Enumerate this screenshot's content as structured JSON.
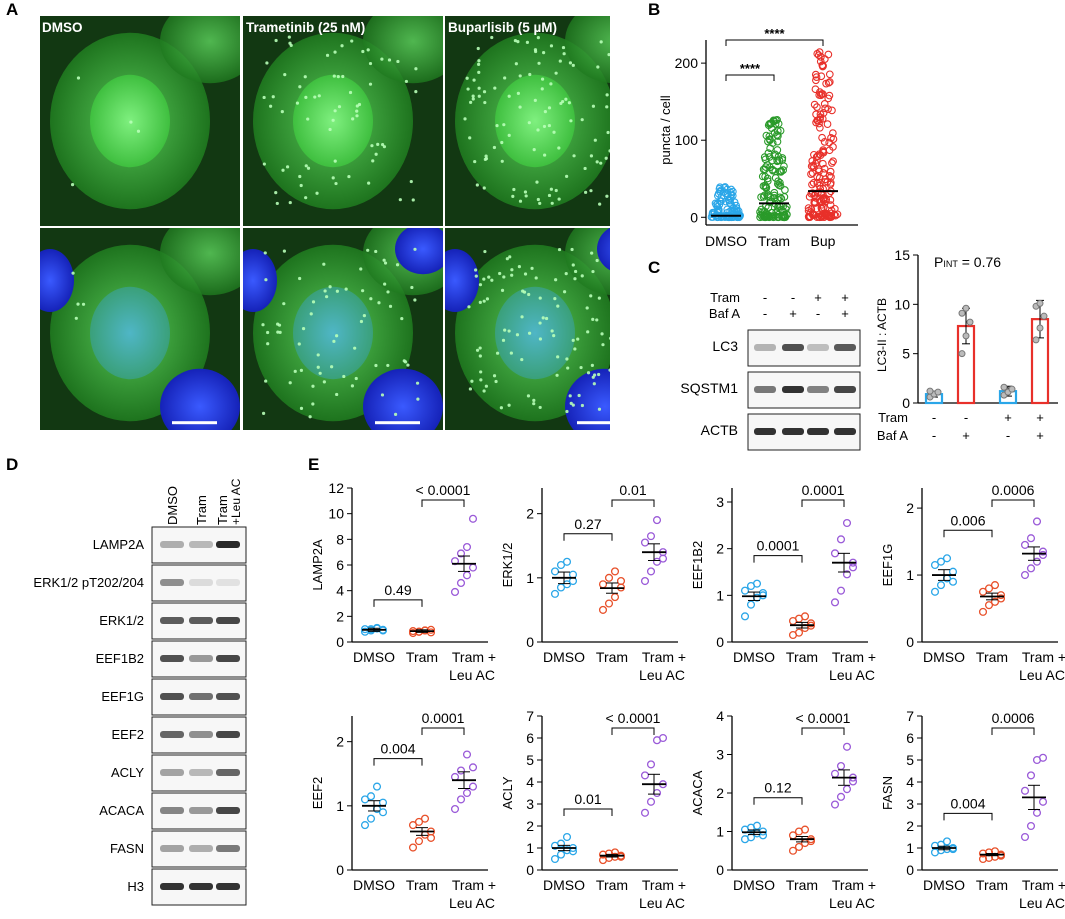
{
  "panels": {
    "A": "A",
    "B": "B",
    "C": "C",
    "D": "D",
    "E": "E"
  },
  "panel_a": {
    "conditions": [
      "DMSO",
      "Trametinib (25 nM)",
      "Buparlisib (5 µM)"
    ]
  },
  "colors": {
    "dmso": "#2aa6e8",
    "tram": "#e8502a",
    "tram_green": "#2a9a2a",
    "bup": "#e8302a",
    "leu": "#9a5ad8",
    "micro_green": "#3fbf3f",
    "nucleus_blue": "#2a3ae0"
  },
  "chart_data": [
    {
      "id": "B",
      "type": "scatter",
      "ylabel": "puncta / cell",
      "categories": [
        "DMSO",
        "Tram",
        "Bup"
      ],
      "yticks": [
        0,
        100,
        200
      ],
      "ylim": [
        -10,
        230
      ],
      "means": [
        2,
        18,
        34
      ],
      "series_colors": [
        "#2aa6e8",
        "#2a9a2a",
        "#e8302a"
      ],
      "significance": [
        {
          "from": 0,
          "to": 1,
          "label": "****"
        },
        {
          "from": 0,
          "to": 2,
          "label": "****"
        }
      ]
    },
    {
      "id": "C",
      "type": "bar",
      "ylabel": "LC3-II : ACTB",
      "annotation": "P",
      "annotation_sub": "INT",
      "annotation_value": " = 0.76",
      "yticks": [
        0,
        5,
        10,
        15
      ],
      "ylim": [
        0,
        15
      ],
      "values": [
        0.9,
        7.8,
        1.2,
        8.5
      ],
      "errors": [
        0.3,
        1.8,
        0.5,
        1.9
      ],
      "points": [
        [
          0.6,
          0.9,
          1.1,
          1.2
        ],
        [
          5.0,
          6.8,
          8.2,
          9.1,
          9.6
        ],
        [
          0.8,
          1.1,
          1.4,
          1.6
        ],
        [
          6.4,
          7.6,
          8.8,
          9.8,
          10.1
        ]
      ],
      "bar_colors": [
        "#2aa6e8",
        "#e8302a",
        "#2aa6e8",
        "#e8302a"
      ],
      "tram_row": {
        "label": "Tram",
        "signs": [
          "-",
          "-",
          "+",
          "+"
        ]
      },
      "baf_row": {
        "label": "Baf A",
        "signs": [
          "-",
          "+",
          "-",
          "+"
        ]
      }
    },
    {
      "id": "E",
      "type": "scatter",
      "categories": [
        "DMSO",
        "Tram",
        "Tram +",
        "Leu AC"
      ],
      "plots": [
        {
          "ylabel": "LAMP2A",
          "ylim": [
            0,
            12
          ],
          "yticks": [
            0,
            2,
            4,
            6,
            8,
            10,
            12
          ],
          "means": [
            0.95,
            0.85,
            6.1
          ],
          "sem": [
            0.12,
            0.1,
            0.6
          ],
          "p1": "0.49",
          "p2": "< 0.0001",
          "pts": [
            [
              0.8,
              1.0,
              1.1,
              0.9,
              1.0,
              0.9,
              1.05,
              0.95
            ],
            [
              0.7,
              0.8,
              0.9,
              0.95,
              0.85,
              0.8,
              0.9,
              0.75
            ],
            [
              3.9,
              4.6,
              5.2,
              5.8,
              6.3,
              6.9,
              7.4,
              9.6
            ]
          ]
        },
        {
          "ylabel": "ERK1/2",
          "ylim": [
            0,
            2.4
          ],
          "yticks": [
            0,
            1,
            2
          ],
          "means": [
            1.0,
            0.84,
            1.4
          ],
          "sem": [
            0.09,
            0.08,
            0.13
          ],
          "p1": "0.27",
          "p2": "0.01",
          "pts": [
            [
              0.75,
              0.85,
              0.9,
              1.05,
              1.1,
              1.2,
              1.25,
              0.95
            ],
            [
              0.5,
              0.6,
              0.7,
              0.85,
              0.9,
              1.0,
              1.1,
              0.95
            ],
            [
              0.95,
              1.1,
              1.25,
              1.4,
              1.55,
              1.65,
              1.9,
              1.3
            ]
          ]
        },
        {
          "ylabel": "EEF1B2",
          "ylim": [
            0,
            3.3
          ],
          "yticks": [
            0,
            1,
            2,
            3
          ],
          "means": [
            0.98,
            0.36,
            1.7
          ],
          "sem": [
            0.09,
            0.06,
            0.2
          ],
          "p1": "0.0001",
          "p2": "0.0001",
          "pts": [
            [
              0.55,
              0.8,
              0.95,
              1.0,
              1.1,
              1.2,
              1.25,
              1.05
            ],
            [
              0.15,
              0.2,
              0.3,
              0.4,
              0.45,
              0.5,
              0.55,
              0.35
            ],
            [
              0.85,
              1.1,
              1.45,
              1.7,
              1.9,
              2.2,
              2.55,
              1.6
            ]
          ]
        },
        {
          "ylabel": "EEF1G",
          "ylim": [
            0,
            2.3
          ],
          "yticks": [
            0,
            1,
            2
          ],
          "means": [
            1.0,
            0.68,
            1.32
          ],
          "sem": [
            0.08,
            0.05,
            0.1
          ],
          "p1": "0.006",
          "p2": "0.0006",
          "pts": [
            [
              0.75,
              0.85,
              0.95,
              1.05,
              1.15,
              1.2,
              1.25,
              0.9
            ],
            [
              0.45,
              0.55,
              0.6,
              0.7,
              0.75,
              0.8,
              0.85,
              0.65
            ],
            [
              1.0,
              1.1,
              1.2,
              1.3,
              1.45,
              1.55,
              1.8,
              1.35
            ]
          ]
        },
        {
          "ylabel": "EEF2",
          "ylim": [
            0,
            2.4
          ],
          "yticks": [
            0,
            1,
            2
          ],
          "means": [
            1.0,
            0.6,
            1.4
          ],
          "sem": [
            0.08,
            0.06,
            0.13
          ],
          "p1": "0.004",
          "p2": "0.0001",
          "pts": [
            [
              0.7,
              0.8,
              0.95,
              1.05,
              1.1,
              1.15,
              1.3,
              0.9
            ],
            [
              0.35,
              0.45,
              0.55,
              0.6,
              0.7,
              0.75,
              0.8,
              0.5
            ],
            [
              0.95,
              1.1,
              1.2,
              1.3,
              1.45,
              1.55,
              1.8,
              1.6
            ]
          ]
        },
        {
          "ylabel": "ACLY",
          "ylim": [
            0,
            7
          ],
          "yticks": [
            0,
            1,
            2,
            3,
            4,
            5,
            6,
            7
          ],
          "means": [
            1.0,
            0.65,
            3.9
          ],
          "sem": [
            0.12,
            0.06,
            0.45
          ],
          "p1": "0.01",
          "p2": "< 0.0001",
          "pts": [
            [
              0.5,
              0.7,
              0.9,
              1.0,
              1.1,
              1.2,
              1.5,
              0.85
            ],
            [
              0.45,
              0.55,
              0.6,
              0.65,
              0.7,
              0.75,
              0.8,
              0.6
            ],
            [
              2.6,
              3.1,
              3.5,
              3.9,
              4.3,
              4.8,
              5.9,
              6.0
            ]
          ]
        },
        {
          "ylabel": "ACACA",
          "ylim": [
            0,
            4
          ],
          "yticks": [
            0,
            1,
            2,
            3,
            4
          ],
          "means": [
            0.98,
            0.8,
            2.4
          ],
          "sem": [
            0.06,
            0.07,
            0.2
          ],
          "p1": "0.12",
          "p2": "< 0.0001",
          "pts": [
            [
              0.8,
              0.85,
              0.95,
              1.0,
              1.05,
              1.1,
              1.15,
              0.9
            ],
            [
              0.5,
              0.6,
              0.7,
              0.8,
              0.9,
              1.0,
              1.05,
              0.75
            ],
            [
              1.7,
              1.9,
              2.1,
              2.3,
              2.5,
              2.7,
              3.2,
              2.4
            ]
          ]
        },
        {
          "ylabel": "FASN",
          "ylim": [
            0,
            7
          ],
          "yticks": [
            0,
            1,
            2,
            3,
            4,
            5,
            6,
            7
          ],
          "means": [
            1.0,
            0.7,
            3.3
          ],
          "sem": [
            0.08,
            0.05,
            0.55
          ],
          "p1": "0.004",
          "p2": "0.0006",
          "pts": [
            [
              0.8,
              0.9,
              0.95,
              1.0,
              1.1,
              1.15,
              1.3,
              0.95
            ],
            [
              0.5,
              0.55,
              0.6,
              0.7,
              0.75,
              0.8,
              0.85,
              0.65
            ],
            [
              1.5,
              2.0,
              2.6,
              3.1,
              3.6,
              4.3,
              5.0,
              5.1
            ]
          ]
        }
      ],
      "colors": [
        "#2aa6e8",
        "#e8502a",
        "#9a5ad8"
      ]
    }
  ],
  "blot_c": {
    "tram_label": "Tram",
    "baf_label": "Baf A",
    "tram_signs": [
      "-",
      "-",
      "+",
      "+"
    ],
    "baf_signs": [
      "-",
      "+",
      "-",
      "+"
    ],
    "rows": [
      {
        "label": "LC3",
        "bands": [
          0.25,
          0.75,
          0.2,
          0.7
        ]
      },
      {
        "label": "SQSTM1",
        "bands": [
          0.55,
          0.9,
          0.5,
          0.8
        ]
      },
      {
        "label": "ACTB",
        "bands": [
          0.9,
          0.9,
          0.9,
          0.9
        ]
      }
    ]
  },
  "blot_d": {
    "lanes": [
      "DMSO",
      "Tram",
      "Tram\n+Leu AC"
    ],
    "lane_line1": "DMSO",
    "lane_line2": "Tram",
    "lane_line3a": "Tram",
    "lane_line3b": "+Leu AC",
    "rows": [
      {
        "label": "LAMP2A",
        "bands": [
          0.3,
          0.25,
          0.95
        ]
      },
      {
        "label": "ERK1/2 pT202/204",
        "bands": [
          0.45,
          0.08,
          0.05
        ]
      },
      {
        "label": "ERK1/2",
        "bands": [
          0.7,
          0.7,
          0.8
        ]
      },
      {
        "label": "EEF1B2",
        "bands": [
          0.75,
          0.4,
          0.8
        ]
      },
      {
        "label": "EEF1G",
        "bands": [
          0.75,
          0.6,
          0.75
        ]
      },
      {
        "label": "EEF2",
        "bands": [
          0.65,
          0.45,
          0.8
        ]
      },
      {
        "label": "ACLY",
        "bands": [
          0.35,
          0.25,
          0.65
        ]
      },
      {
        "label": "ACACA",
        "bands": [
          0.5,
          0.4,
          0.8
        ]
      },
      {
        "label": "FASN",
        "bands": [
          0.35,
          0.3,
          0.55
        ]
      },
      {
        "label": "H3",
        "bands": [
          0.9,
          0.9,
          0.9
        ]
      }
    ]
  }
}
